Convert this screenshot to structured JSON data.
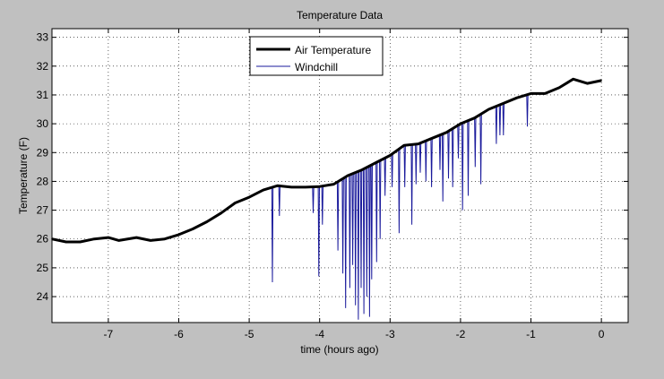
{
  "chart_data": {
    "type": "line",
    "title": "Temperature Data",
    "xlabel": "time (hours ago)",
    "ylabel": "Temperature (F)",
    "xlim": [
      -7.8,
      0.38
    ],
    "ylim": [
      23.1,
      33.3
    ],
    "xticks": [
      -7,
      -6,
      -5,
      -4,
      -3,
      -2,
      -1,
      0
    ],
    "yticks": [
      24,
      25,
      26,
      27,
      28,
      29,
      30,
      31,
      32,
      33
    ],
    "grid": true,
    "legend_position": "top-center",
    "colors": {
      "figure_background": "#c0c0c0",
      "axes_background": "#ffffff",
      "air_temperature": "#000000",
      "windchill": "#1a1a9c"
    },
    "series": [
      {
        "name": "Air Temperature",
        "style": "thick",
        "points": [
          [
            -7.8,
            26.0
          ],
          [
            -7.6,
            25.9
          ],
          [
            -7.4,
            25.9
          ],
          [
            -7.2,
            26.0
          ],
          [
            -7.0,
            26.05
          ],
          [
            -6.85,
            25.95
          ],
          [
            -6.6,
            26.05
          ],
          [
            -6.4,
            25.95
          ],
          [
            -6.2,
            26.0
          ],
          [
            -6.0,
            26.15
          ],
          [
            -5.8,
            26.35
          ],
          [
            -5.6,
            26.6
          ],
          [
            -5.4,
            26.9
          ],
          [
            -5.2,
            27.25
          ],
          [
            -5.0,
            27.45
          ],
          [
            -4.8,
            27.7
          ],
          [
            -4.6,
            27.85
          ],
          [
            -4.4,
            27.8
          ],
          [
            -4.2,
            27.8
          ],
          [
            -4.0,
            27.82
          ],
          [
            -3.8,
            27.9
          ],
          [
            -3.6,
            28.2
          ],
          [
            -3.4,
            28.4
          ],
          [
            -3.2,
            28.65
          ],
          [
            -3.0,
            28.9
          ],
          [
            -2.8,
            29.25
          ],
          [
            -2.6,
            29.3
          ],
          [
            -2.4,
            29.5
          ],
          [
            -2.2,
            29.7
          ],
          [
            -2.0,
            30.0
          ],
          [
            -1.8,
            30.2
          ],
          [
            -1.6,
            30.5
          ],
          [
            -1.4,
            30.7
          ],
          [
            -1.2,
            30.9
          ],
          [
            -1.0,
            31.05
          ],
          [
            -0.8,
            31.05
          ],
          [
            -0.6,
            31.25
          ],
          [
            -0.4,
            31.55
          ],
          [
            -0.2,
            31.4
          ],
          [
            0.0,
            31.5
          ]
        ]
      },
      {
        "name": "Windchill",
        "style": "thin",
        "dips": [
          [
            -4.68,
            24.5
          ],
          [
            -4.58,
            26.8
          ],
          [
            -4.1,
            26.9
          ],
          [
            -4.02,
            24.7
          ],
          [
            -3.97,
            26.5
          ],
          [
            -3.75,
            25.6
          ],
          [
            -3.68,
            24.8
          ],
          [
            -3.64,
            23.6
          ],
          [
            -3.58,
            24.3
          ],
          [
            -3.54,
            25.1
          ],
          [
            -3.5,
            23.7
          ],
          [
            -3.46,
            23.2
          ],
          [
            -3.42,
            24.3
          ],
          [
            -3.38,
            23.4
          ],
          [
            -3.34,
            24.0
          ],
          [
            -3.3,
            23.3
          ],
          [
            -3.27,
            24.6
          ],
          [
            -3.2,
            25.2
          ],
          [
            -3.15,
            26.0
          ],
          [
            -3.08,
            27.5
          ],
          [
            -2.98,
            27.8
          ],
          [
            -2.88,
            26.2
          ],
          [
            -2.8,
            27.8
          ],
          [
            -2.7,
            26.5
          ],
          [
            -2.64,
            27.9
          ],
          [
            -2.58,
            28.3
          ],
          [
            -2.5,
            28.0
          ],
          [
            -2.42,
            27.8
          ],
          [
            -2.3,
            28.4
          ],
          [
            -2.26,
            27.3
          ],
          [
            -2.18,
            28.1
          ],
          [
            -2.12,
            27.8
          ],
          [
            -2.04,
            28.8
          ],
          [
            -1.98,
            27.0
          ],
          [
            -1.9,
            27.5
          ],
          [
            -1.8,
            28.5
          ],
          [
            -1.72,
            27.9
          ],
          [
            -1.5,
            29.3
          ],
          [
            -1.45,
            29.6
          ],
          [
            -1.4,
            29.6
          ],
          [
            -1.06,
            29.9
          ]
        ]
      }
    ]
  }
}
